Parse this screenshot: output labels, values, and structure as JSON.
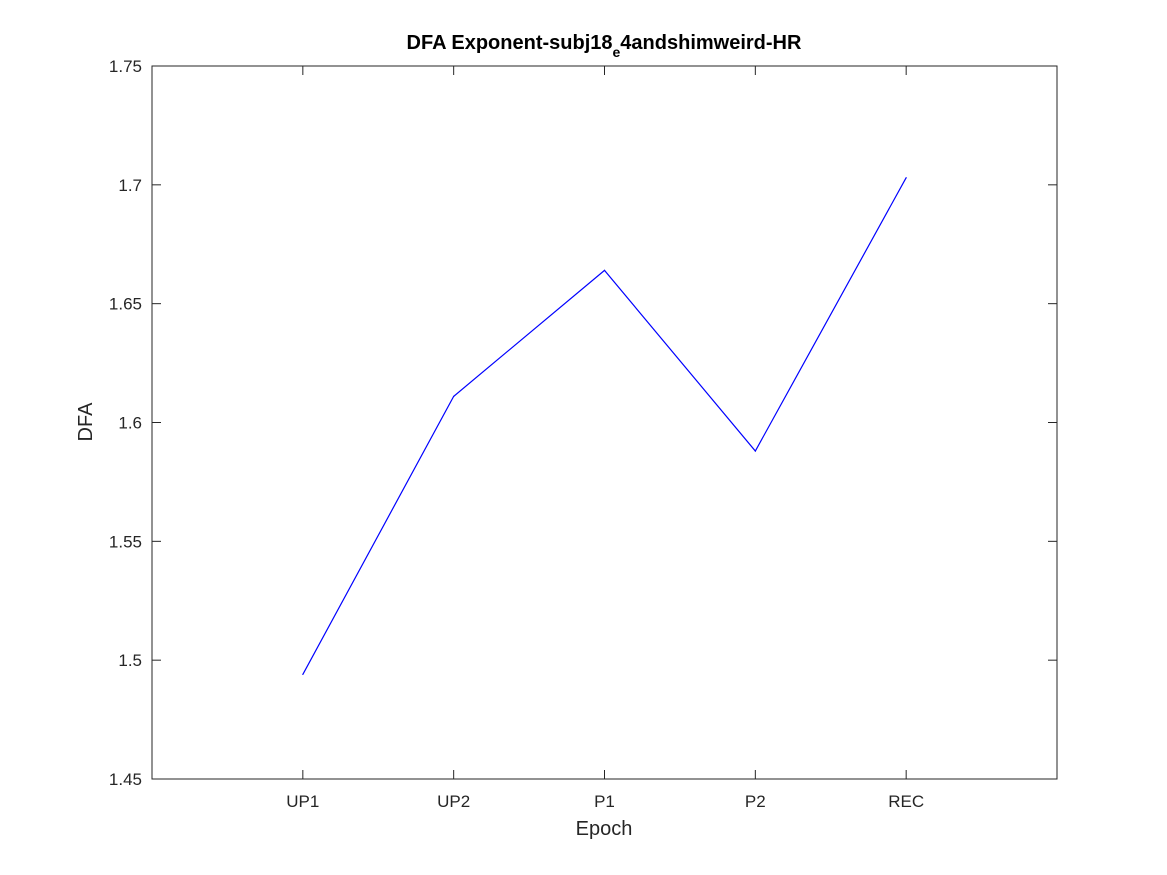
{
  "chart_data": {
    "type": "line",
    "title": {
      "main": "DFA Exponent-subj18",
      "subscript": "e",
      "rest": "4andshimweird-HR"
    },
    "xlabel": "Epoch",
    "ylabel": "DFA",
    "categories": [
      "UP1",
      "UP2",
      "P1",
      "P2",
      "REC"
    ],
    "x_positions": [
      1,
      2,
      3,
      4,
      5
    ],
    "xlim": [
      0,
      6
    ],
    "ylim": [
      1.45,
      1.75
    ],
    "yticks": [
      1.45,
      1.5,
      1.55,
      1.6,
      1.65,
      1.7,
      1.75
    ],
    "ytick_labels": [
      "1.45",
      "1.5",
      "1.55",
      "1.6",
      "1.65",
      "1.7",
      "1.75"
    ],
    "series": [
      {
        "values": [
          1.494,
          1.611,
          1.664,
          1.588,
          1.703
        ],
        "color": "#0000ff"
      }
    ],
    "grid": false,
    "legend": false
  }
}
